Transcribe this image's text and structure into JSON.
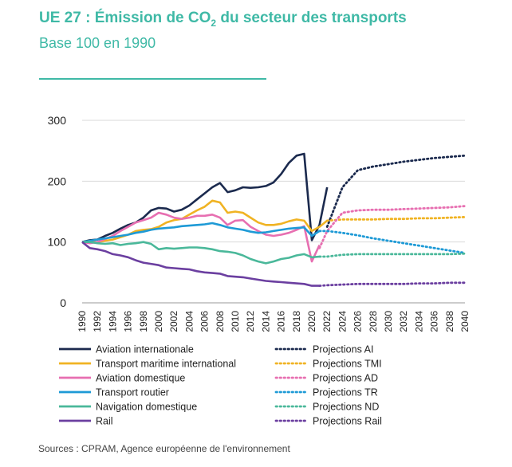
{
  "header": {
    "title_prefix": "UE 27 : Émission de CO",
    "title_sub": "2",
    "title_suffix": " du secteur des transports",
    "subtitle": "Base 100 en 1990"
  },
  "source": "Sources : CPRAM, Agence européenne de l'environnement",
  "chart_data": {
    "type": "line",
    "title": "UE 27 : Émission de CO2 du secteur des transports",
    "subtitle": "Base 100 en 1990",
    "xlabel": "",
    "ylabel": "",
    "xlim": [
      1990,
      2040
    ],
    "ylim": [
      0,
      300
    ],
    "yticks": [
      0,
      100,
      200,
      300
    ],
    "xticks": [
      "1990",
      "1992",
      "1994",
      "1996",
      "1998",
      "2000",
      "2002",
      "2004",
      "2006",
      "2008",
      "2010",
      "2012",
      "2014",
      "2016",
      "2018",
      "2020",
      "2022",
      "2024",
      "2026",
      "2028",
      "2030",
      "2032",
      "2034",
      "2036",
      "2038",
      "2040"
    ],
    "grid": "horizontal",
    "legend_position": "bottom",
    "series": [
      {
        "name": "Aviation internationale",
        "color": "#1b2a4e",
        "style": "solid",
        "x": [
          1990,
          1991,
          1992,
          1993,
          1994,
          1995,
          1996,
          1997,
          1998,
          1999,
          2000,
          2001,
          2002,
          2003,
          2004,
          2005,
          2006,
          2007,
          2008,
          2009,
          2010,
          2011,
          2012,
          2013,
          2014,
          2015,
          2016,
          2017,
          2018,
          2019,
          2020,
          2021,
          2022
        ],
        "y": [
          100,
          103,
          104,
          110,
          115,
          122,
          128,
          132,
          140,
          152,
          156,
          155,
          150,
          153,
          160,
          170,
          180,
          190,
          197,
          182,
          185,
          190,
          189,
          190,
          192,
          198,
          212,
          230,
          242,
          245,
          103,
          128,
          190
        ]
      },
      {
        "name": "Transport maritime international",
        "color": "#f0b323",
        "style": "solid",
        "x": [
          1990,
          1991,
          1992,
          1993,
          1994,
          1995,
          1996,
          1997,
          1998,
          1999,
          2000,
          2001,
          2002,
          2003,
          2004,
          2005,
          2006,
          2007,
          2008,
          2009,
          2010,
          2011,
          2012,
          2013,
          2014,
          2015,
          2016,
          2017,
          2018,
          2019,
          2020,
          2021,
          2022
        ],
        "y": [
          100,
          100,
          100,
          102,
          104,
          108,
          112,
          118,
          120,
          121,
          125,
          132,
          136,
          138,
          145,
          152,
          158,
          168,
          165,
          148,
          150,
          148,
          140,
          132,
          128,
          128,
          130,
          134,
          137,
          135,
          118,
          125,
          135
        ]
      },
      {
        "name": "Aviation domestique",
        "color": "#e76fb1",
        "style": "solid",
        "x": [
          1990,
          1991,
          1992,
          1993,
          1994,
          1995,
          1996,
          1997,
          1998,
          1999,
          2000,
          2001,
          2002,
          2003,
          2004,
          2005,
          2006,
          2007,
          2008,
          2009,
          2010,
          2011,
          2012,
          2013,
          2014,
          2015,
          2016,
          2017,
          2018,
          2019,
          2020,
          2021
        ],
        "y": [
          100,
          98,
          100,
          105,
          110,
          118,
          125,
          132,
          136,
          140,
          148,
          145,
          140,
          138,
          140,
          143,
          143,
          145,
          140,
          128,
          135,
          136,
          125,
          118,
          112,
          110,
          112,
          115,
          120,
          126,
          68,
          95
        ]
      },
      {
        "name": "Transport routier",
        "color": "#1e9ad6",
        "style": "solid",
        "x": [
          1990,
          1991,
          1992,
          1993,
          1994,
          1995,
          1996,
          1997,
          1998,
          1999,
          2000,
          2001,
          2002,
          2003,
          2004,
          2005,
          2006,
          2007,
          2008,
          2009,
          2010,
          2011,
          2012,
          2013,
          2014,
          2015,
          2016,
          2017,
          2018,
          2019,
          2020,
          2021
        ],
        "y": [
          100,
          102,
          104,
          106,
          108,
          110,
          112,
          115,
          117,
          120,
          122,
          123,
          124,
          126,
          127,
          128,
          129,
          131,
          128,
          124,
          122,
          120,
          117,
          115,
          116,
          118,
          120,
          122,
          123,
          124,
          110,
          118
        ]
      },
      {
        "name": "Navigation domestique",
        "color": "#4ab89a",
        "style": "solid",
        "x": [
          1990,
          1991,
          1992,
          1993,
          1994,
          1995,
          1996,
          1997,
          1998,
          1999,
          2000,
          2001,
          2002,
          2003,
          2004,
          2005,
          2006,
          2007,
          2008,
          2009,
          2010,
          2011,
          2012,
          2013,
          2014,
          2015,
          2016,
          2017,
          2018,
          2019,
          2020,
          2021
        ],
        "y": [
          100,
          100,
          98,
          97,
          98,
          95,
          97,
          98,
          100,
          97,
          88,
          90,
          89,
          90,
          91,
          91,
          90,
          88,
          85,
          84,
          82,
          78,
          72,
          68,
          65,
          68,
          72,
          74,
          78,
          80,
          75,
          76
        ]
      },
      {
        "name": "Rail",
        "color": "#6b3fa0",
        "style": "solid",
        "x": [
          1990,
          1991,
          1992,
          1993,
          1994,
          1995,
          1996,
          1997,
          1998,
          1999,
          2000,
          2001,
          2002,
          2003,
          2004,
          2005,
          2006,
          2007,
          2008,
          2009,
          2010,
          2011,
          2012,
          2013,
          2014,
          2015,
          2016,
          2017,
          2018,
          2019,
          2020,
          2021
        ],
        "y": [
          100,
          90,
          88,
          85,
          80,
          78,
          75,
          70,
          66,
          64,
          62,
          58,
          57,
          56,
          55,
          52,
          50,
          49,
          48,
          44,
          43,
          42,
          40,
          38,
          36,
          35,
          34,
          33,
          32,
          31,
          28,
          28
        ]
      },
      {
        "name": "Projections AI",
        "color": "#1b2a4e",
        "style": "dotted",
        "x": [
          2022,
          2024,
          2026,
          2028,
          2030,
          2032,
          2034,
          2036,
          2038,
          2040
        ],
        "y": [
          125,
          190,
          218,
          224,
          228,
          232,
          235,
          238,
          240,
          242
        ]
      },
      {
        "name": "Projections TMI",
        "color": "#f0b323",
        "style": "dotted",
        "x": [
          2022,
          2024,
          2026,
          2028,
          2030,
          2032,
          2034,
          2036,
          2038,
          2040
        ],
        "y": [
          135,
          137,
          137,
          137,
          138,
          138,
          139,
          139,
          140,
          141
        ]
      },
      {
        "name": "Projections AD",
        "color": "#e76fb1",
        "style": "dotted",
        "x": [
          2021,
          2022,
          2024,
          2026,
          2028,
          2030,
          2032,
          2034,
          2036,
          2038,
          2040
        ],
        "y": [
          90,
          118,
          148,
          152,
          153,
          153,
          154,
          155,
          156,
          157,
          159
        ]
      },
      {
        "name": "Projections TR",
        "color": "#1e9ad6",
        "style": "dotted",
        "x": [
          2021,
          2022,
          2024,
          2026,
          2028,
          2030,
          2032,
          2034,
          2036,
          2038,
          2040
        ],
        "y": [
          118,
          118,
          115,
          111,
          106,
          102,
          98,
          94,
          90,
          86,
          82
        ]
      },
      {
        "name": "Projections ND",
        "color": "#4ab89a",
        "style": "dotted",
        "x": [
          2021,
          2022,
          2024,
          2026,
          2028,
          2030,
          2032,
          2034,
          2036,
          2038,
          2040
        ],
        "y": [
          76,
          76,
          79,
          80,
          80,
          80,
          80,
          80,
          80,
          80,
          81
        ]
      },
      {
        "name": "Projections Rail",
        "color": "#6b3fa0",
        "style": "dotted",
        "x": [
          2021,
          2022,
          2024,
          2026,
          2028,
          2030,
          2032,
          2034,
          2036,
          2038,
          2040
        ],
        "y": [
          28,
          29,
          30,
          31,
          31,
          31,
          31,
          32,
          32,
          33,
          33
        ]
      }
    ]
  }
}
